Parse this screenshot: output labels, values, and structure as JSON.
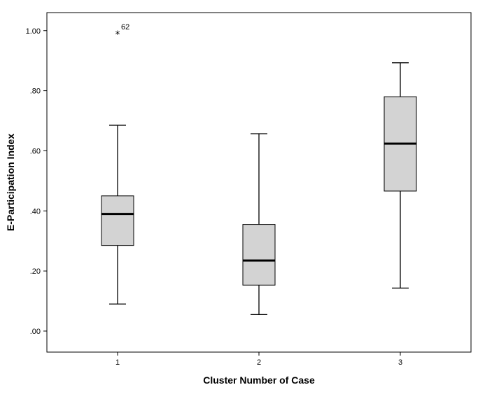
{
  "chart_data": {
    "type": "boxplot",
    "xlabel": "Cluster Number of Case",
    "ylabel": "E-Participation Index",
    "ylim": [
      -0.07,
      1.06
    ],
    "y_ticks": [
      0.0,
      0.2,
      0.4,
      0.6,
      0.8,
      1.0
    ],
    "y_tick_labels": [
      ".00",
      ".20",
      ".40",
      ".60",
      ".80",
      "1.00"
    ],
    "categories": [
      "1",
      "2",
      "3"
    ],
    "boxes": [
      {
        "category": "1",
        "min": 0.09,
        "q1": 0.285,
        "median": 0.39,
        "q3": 0.45,
        "max": 0.685,
        "outliers": [
          {
            "value": 0.99,
            "label": "62",
            "marker": "*"
          }
        ]
      },
      {
        "category": "2",
        "min": 0.055,
        "q1": 0.153,
        "median": 0.235,
        "q3": 0.355,
        "max": 0.657,
        "outliers": []
      },
      {
        "category": "3",
        "min": 0.143,
        "q1": 0.466,
        "median": 0.624,
        "q3": 0.78,
        "max": 0.893,
        "outliers": []
      }
    ],
    "colors": {
      "box_fill": "#d3d3d3",
      "stroke": "#000000",
      "background": "#ffffff"
    },
    "grid": false,
    "legend": "none"
  }
}
